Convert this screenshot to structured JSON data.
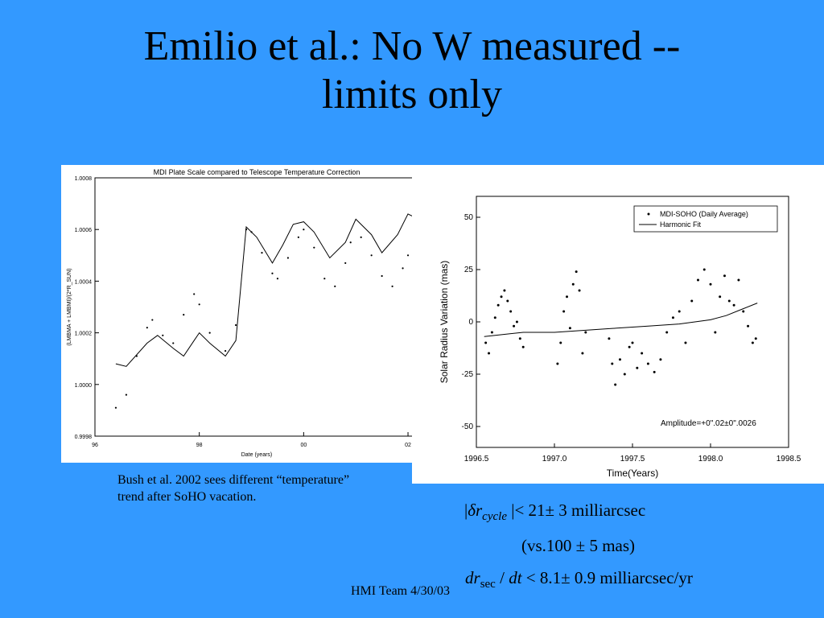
{
  "slide": {
    "title_line1": "Emilio et al.: No W measured --",
    "title_line2": "limits only",
    "caption_line1": "Bush et al. 2002 sees different “temperature”",
    "caption_line2": "trend after SoHO vacation.",
    "footer": "HMI Team 4/30/03"
  },
  "equations": {
    "eq1": {
      "bar_open": "|",
      "delta": "δ",
      "r": "r",
      "sub": "cycle",
      "rest": "|< 21± 3 milliarcsec"
    },
    "eq2": {
      "text": "(vs.100 ± 5 mas)"
    },
    "eq3": {
      "dr": "dr",
      "sub": "sec",
      "slash": " / ",
      "dt": "dt",
      "rest": " < 8.1± 0.9 milliarcsec/yr"
    }
  },
  "chart_data": [
    {
      "type": "scatter",
      "title": "MDI Plate Scale compared to Telescope Temperature Correction",
      "xlabel": "Date (years)",
      "ylabel": "(LMBMA + LMBMI)/(2*R_SUN)",
      "xlim": [
        96,
        102.2
      ],
      "ylim": [
        0.9998,
        1.0008
      ],
      "x_ticks": [
        "96",
        "98",
        "00",
        "02"
      ],
      "y_ticks": [
        "0.9998",
        "1.0000",
        "1.0002",
        "1.0004",
        "1.0006",
        "1.0008"
      ],
      "series": [
        {
          "style": "line",
          "x": [
            96.4,
            96.6,
            97.0,
            97.2,
            97.5,
            97.7,
            97.9,
            98.0,
            98.2,
            98.5,
            98.7,
            98.9,
            99.1,
            99.4,
            99.6,
            99.8,
            100.0,
            100.2,
            100.5,
            100.8,
            101.0,
            101.3,
            101.5,
            101.8,
            102.0,
            102.1
          ],
          "y": [
            1.00008,
            1.00007,
            1.00016,
            1.00019,
            1.00014,
            1.00011,
            1.00017,
            1.0002,
            1.00016,
            1.00011,
            1.00017,
            1.00061,
            1.00057,
            1.00047,
            1.00054,
            1.00062,
            1.00063,
            1.00059,
            1.00049,
            1.00055,
            1.00064,
            1.00058,
            1.00051,
            1.00058,
            1.00066,
            1.00065
          ]
        },
        {
          "style": "points",
          "x": [
            96.4,
            96.6,
            96.8,
            97.0,
            97.1,
            97.3,
            97.5,
            97.7,
            97.9,
            98.0,
            98.2,
            98.5,
            98.7,
            98.9,
            99.0,
            99.2,
            99.4,
            99.5,
            99.7,
            99.9,
            100.0,
            100.2,
            100.4,
            100.6,
            100.8,
            100.9,
            101.1,
            101.3,
            101.5,
            101.7,
            101.9,
            102.0,
            102.1
          ],
          "y": [
            0.99991,
            0.99996,
            1.00011,
            1.00022,
            1.00025,
            1.00019,
            1.00016,
            1.00027,
            1.00035,
            1.00031,
            1.0002,
            1.00013,
            1.00023,
            1.0006,
            1.00059,
            1.00051,
            1.00043,
            1.00041,
            1.00049,
            1.00057,
            1.0006,
            1.00053,
            1.00041,
            1.00038,
            1.00047,
            1.00055,
            1.00057,
            1.0005,
            1.00042,
            1.00038,
            1.00045,
            1.0005,
            1.00049
          ]
        }
      ]
    },
    {
      "type": "scatter",
      "xlabel": "Time(Years)",
      "ylabel": "Solar Radius Variation (mas)",
      "xlim": [
        1996.5,
        1998.5
      ],
      "ylim": [
        -60,
        60
      ],
      "x_ticks": [
        "1996.5",
        "1997.0",
        "1997.5",
        "1998.0",
        "1998.5"
      ],
      "y_ticks": [
        "50",
        "25",
        "0",
        "-25",
        "-50"
      ],
      "legend": [
        "MDI-SOHO (Daily Average)",
        "Harmonic Fit"
      ],
      "legend_position": "top-right",
      "annotation": "Amplitude=+0\".02±0\".0026",
      "series": [
        {
          "name": "MDI-SOHO (Daily Average)",
          "style": "points",
          "x": [
            1996.56,
            1996.58,
            1996.6,
            1996.62,
            1996.64,
            1996.66,
            1996.68,
            1996.7,
            1996.72,
            1996.74,
            1996.76,
            1996.78,
            1996.8,
            1997.02,
            1997.04,
            1997.06,
            1997.08,
            1997.1,
            1997.12,
            1997.14,
            1997.16,
            1997.18,
            1997.2,
            1997.35,
            1997.37,
            1997.39,
            1997.42,
            1997.45,
            1997.48,
            1997.5,
            1997.53,
            1997.56,
            1997.6,
            1997.64,
            1997.68,
            1997.72,
            1997.76,
            1997.8,
            1997.84,
            1997.88,
            1997.92,
            1997.96,
            1998.0,
            1998.03,
            1998.06,
            1998.09,
            1998.12,
            1998.15,
            1998.18,
            1998.21,
            1998.24,
            1998.27,
            1998.29
          ],
          "y": [
            -10,
            -15,
            -5,
            2,
            8,
            12,
            15,
            10,
            5,
            -2,
            0,
            -8,
            -12,
            -20,
            -10,
            5,
            12,
            -3,
            18,
            24,
            15,
            -15,
            -5,
            -8,
            -20,
            -30,
            -18,
            -25,
            -12,
            -10,
            -22,
            -15,
            -20,
            -24,
            -18,
            -5,
            2,
            5,
            -10,
            10,
            20,
            25,
            18,
            -5,
            12,
            22,
            10,
            8,
            20,
            5,
            -2,
            -10,
            -8
          ]
        },
        {
          "name": "Harmonic Fit",
          "style": "line",
          "x": [
            1996.55,
            1996.8,
            1997.0,
            1997.2,
            1997.4,
            1997.6,
            1997.8,
            1998.0,
            1998.1,
            1998.2,
            1998.3
          ],
          "y": [
            -7,
            -5,
            -5,
            -4,
            -3,
            -2,
            -1,
            1,
            3,
            6,
            9
          ]
        }
      ]
    }
  ]
}
